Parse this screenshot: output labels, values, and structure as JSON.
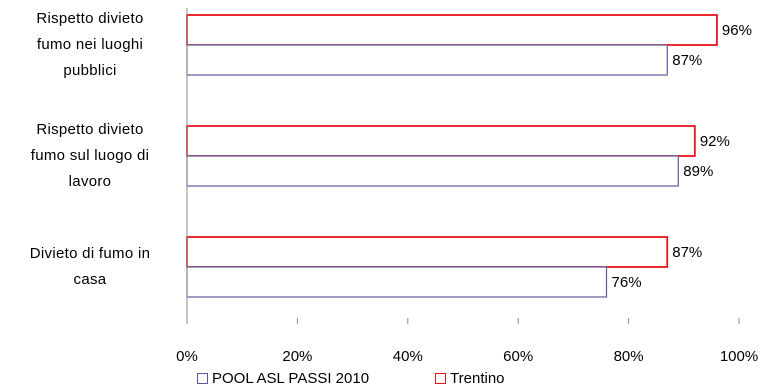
{
  "chart_data": {
    "type": "bar",
    "orientation": "horizontal",
    "categories": [
      "Rispetto divieto fumo nei luoghi pubblici",
      "Rispetto divieto fumo sul luogo di lavoro",
      "Divieto di fumo in casa"
    ],
    "category_lines": [
      [
        "Rispetto divieto",
        "fumo nei luoghi",
        "pubblici"
      ],
      [
        "Rispetto divieto",
        "fumo sul luogo di",
        "lavoro"
      ],
      [
        "Divieto di fumo in",
        "casa"
      ]
    ],
    "series": [
      {
        "name": "Trentino",
        "values": [
          96,
          92,
          87
        ],
        "labels": [
          "96%",
          "92%",
          "87%"
        ],
        "color": "#e8141c"
      },
      {
        "name": "POOL ASL PASSI 2010",
        "values": [
          87,
          89,
          76
        ],
        "labels": [
          "87%",
          "89%",
          "76%"
        ],
        "color": "#5a5a9a"
      }
    ],
    "xlim": [
      0,
      100
    ],
    "x_ticks": [
      "0%",
      "20%",
      "40%",
      "60%",
      "80%",
      "100%"
    ],
    "grid": false,
    "legend": {
      "position": "bottom",
      "entries": [
        {
          "label": "POOL ASL PASSI 2010",
          "color": "#5a5a9a"
        },
        {
          "label": "Trentino",
          "color": "#e8141c"
        }
      ]
    }
  }
}
